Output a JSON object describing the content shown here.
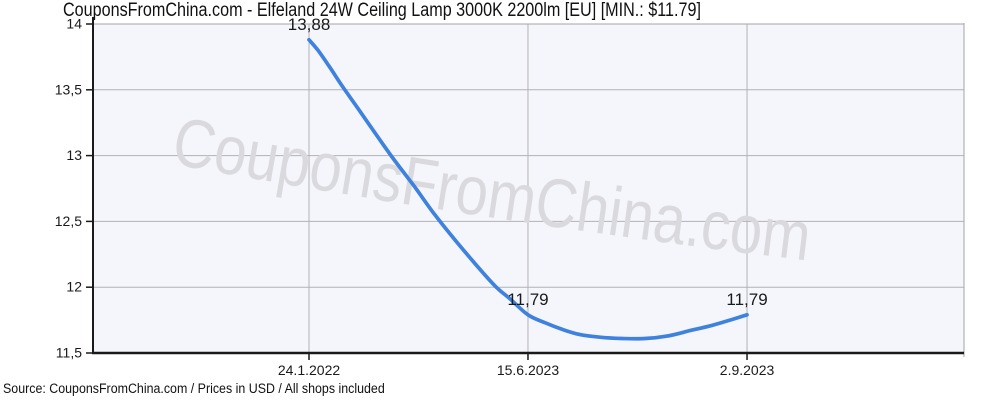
{
  "title": "CouponsFromChina.com - Elfeland 24W Ceiling Lamp 3000K 2200lm [EU] [MIN.: $11.79]",
  "source_line": "Source: CouponsFromChina.com / Prices in USD / All shops included",
  "watermark": "CouponsFromChina.com",
  "colors": {
    "line": "#3f82de",
    "grid": "#b2b2b6",
    "border": "#a4a4a8",
    "spine": "#1a1a1a",
    "plot_bg": "#f5f6fb",
    "text": "#1a1a1a",
    "watermark": "#dadade",
    "annotation": "#1a1a1a"
  },
  "chart_data": {
    "type": "line",
    "title": "CouponsFromChina.com - Elfeland 24W Ceiling Lamp 3000K 2200lm [EU] [MIN.: $11.79]",
    "xlabel": "",
    "ylabel": "",
    "y_range": [
      11.5,
      14
    ],
    "grid": true,
    "y_ticks": [
      {
        "value": 14,
        "label": "14"
      },
      {
        "value": 13.5,
        "label": "13,5"
      },
      {
        "value": 13,
        "label": "13"
      },
      {
        "value": 12.5,
        "label": "12,5"
      },
      {
        "value": 12,
        "label": "12"
      },
      {
        "value": 11.5,
        "label": "11,5"
      }
    ],
    "x_ticks": [
      {
        "pos": 0.248,
        "label": "24.1.2022"
      },
      {
        "pos": 0.4994,
        "label": "15.6.2023"
      },
      {
        "pos": 0.7509,
        "label": "2.9.2023"
      }
    ],
    "series": [
      {
        "name": "price",
        "points": [
          {
            "pos": 0.248,
            "price": 13.88
          },
          {
            "pos": 0.2583,
            "price": 13.8
          },
          {
            "pos": 0.271,
            "price": 13.68
          },
          {
            "pos": 0.286,
            "price": 13.53
          },
          {
            "pos": 0.304,
            "price": 13.36
          },
          {
            "pos": 0.324,
            "price": 13.17
          },
          {
            "pos": 0.3455,
            "price": 12.97
          },
          {
            "pos": 0.3685,
            "price": 12.77
          },
          {
            "pos": 0.3925,
            "price": 12.55
          },
          {
            "pos": 0.4155,
            "price": 12.36
          },
          {
            "pos": 0.4385,
            "price": 12.18
          },
          {
            "pos": 0.4615,
            "price": 12.01
          },
          {
            "pos": 0.479,
            "price": 11.91
          },
          {
            "pos": 0.4994,
            "price": 11.79
          },
          {
            "pos": 0.5189,
            "price": 11.73
          },
          {
            "pos": 0.5385,
            "price": 11.68
          },
          {
            "pos": 0.5591,
            "price": 11.64
          },
          {
            "pos": 0.5821,
            "price": 11.62
          },
          {
            "pos": 0.6073,
            "price": 11.61
          },
          {
            "pos": 0.6337,
            "price": 11.61
          },
          {
            "pos": 0.6601,
            "price": 11.63
          },
          {
            "pos": 0.6854,
            "price": 11.67
          },
          {
            "pos": 0.7106,
            "price": 11.71
          },
          {
            "pos": 0.7313,
            "price": 11.75
          },
          {
            "pos": 0.7509,
            "price": 11.79
          }
        ]
      }
    ],
    "annotations": [
      {
        "pos": 0.248,
        "price": 13.88,
        "label": "13,88"
      },
      {
        "pos": 0.4994,
        "price": 11.79,
        "label": "11,79"
      },
      {
        "pos": 0.7509,
        "price": 11.79,
        "label": "11,79"
      }
    ]
  }
}
